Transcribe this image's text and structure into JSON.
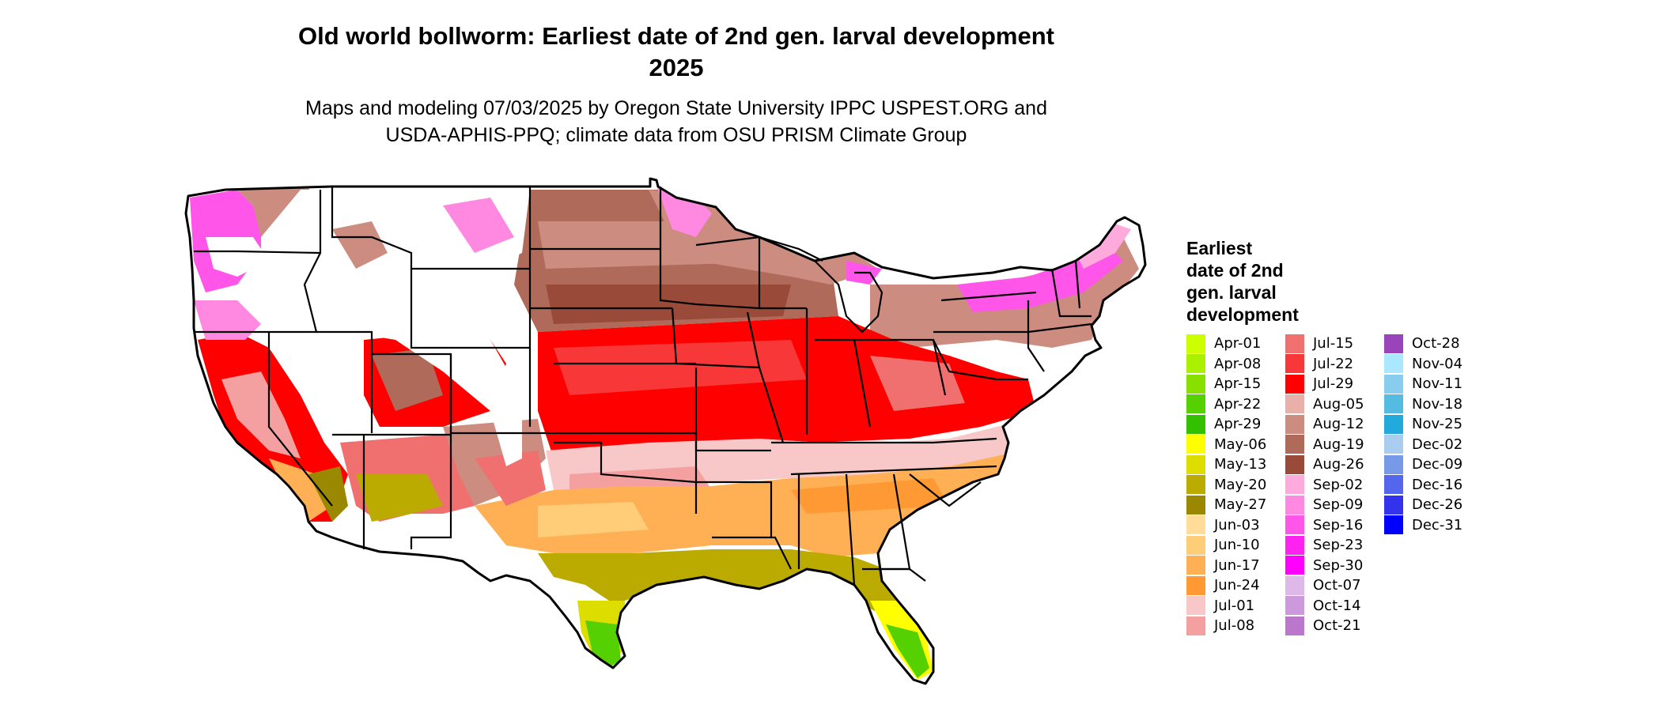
{
  "title_line1": "Old world bollworm: Earliest date of 2nd gen. larval development",
  "title_line2": "2025",
  "subtitle_line1": "Maps and modeling 07/03/2025 by Oregon State University IPPC USPEST.ORG and",
  "subtitle_line2": "USDA-APHIS-PPQ; climate data from OSU PRISM Climate Group",
  "legend": {
    "title_lines": [
      "Earliest",
      "date of 2nd",
      "gen. larval",
      "development"
    ],
    "columns": [
      [
        {
          "label": "Apr-01",
          "color": "#ccff00"
        },
        {
          "label": "Apr-08",
          "color": "#aaf000"
        },
        {
          "label": "Apr-15",
          "color": "#88e000"
        },
        {
          "label": "Apr-22",
          "color": "#55d000"
        },
        {
          "label": "Apr-29",
          "color": "#33c000"
        },
        {
          "label": "May-06",
          "color": "#ffff00"
        },
        {
          "label": "May-13",
          "color": "#dddd00"
        },
        {
          "label": "May-20",
          "color": "#bbaa00"
        },
        {
          "label": "May-27",
          "color": "#998800"
        },
        {
          "label": "Jun-03",
          "color": "#ffdd99"
        },
        {
          "label": "Jun-10",
          "color": "#ffcc77"
        },
        {
          "label": "Jun-17",
          "color": "#ffb055"
        },
        {
          "label": "Jun-24",
          "color": "#ff9933"
        },
        {
          "label": "Jul-01",
          "color": "#f8c8c8"
        },
        {
          "label": "Jul-08",
          "color": "#f4a0a0"
        }
      ],
      [
        {
          "label": "Jul-15",
          "color": "#f07070"
        },
        {
          "label": "Jul-22",
          "color": "#f83838"
        },
        {
          "label": "Jul-29",
          "color": "#ff0000"
        },
        {
          "label": "Aug-05",
          "color": "#e8b0a8"
        },
        {
          "label": "Aug-12",
          "color": "#cc8c80"
        },
        {
          "label": "Aug-19",
          "color": "#b06a5a"
        },
        {
          "label": "Aug-26",
          "color": "#9a4a38"
        },
        {
          "label": "Sep-02",
          "color": "#ffaadd"
        },
        {
          "label": "Sep-09",
          "color": "#ff88e0"
        },
        {
          "label": "Sep-16",
          "color": "#ff55e8"
        },
        {
          "label": "Sep-23",
          "color": "#ff22f0"
        },
        {
          "label": "Sep-30",
          "color": "#ff00ff"
        },
        {
          "label": "Oct-07",
          "color": "#ddb8e8"
        },
        {
          "label": "Oct-14",
          "color": "#cc99dd"
        },
        {
          "label": "Oct-21",
          "color": "#bb77cc"
        }
      ],
      [
        {
          "label": "Oct-28",
          "color": "#9944bb"
        },
        {
          "label": "Nov-04",
          "color": "#aae8ff"
        },
        {
          "label": "Nov-11",
          "color": "#88ccee"
        },
        {
          "label": "Nov-18",
          "color": "#55bbe0"
        },
        {
          "label": "Nov-25",
          "color": "#22aadd"
        },
        {
          "label": "Dec-02",
          "color": "#aaccee"
        },
        {
          "label": "Dec-09",
          "color": "#7799e8"
        },
        {
          "label": "Dec-16",
          "color": "#5566ee"
        },
        {
          "label": "Dec-26",
          "color": "#3333ee"
        },
        {
          "label": "Dec-31",
          "color": "#0000ff"
        }
      ]
    ]
  }
}
